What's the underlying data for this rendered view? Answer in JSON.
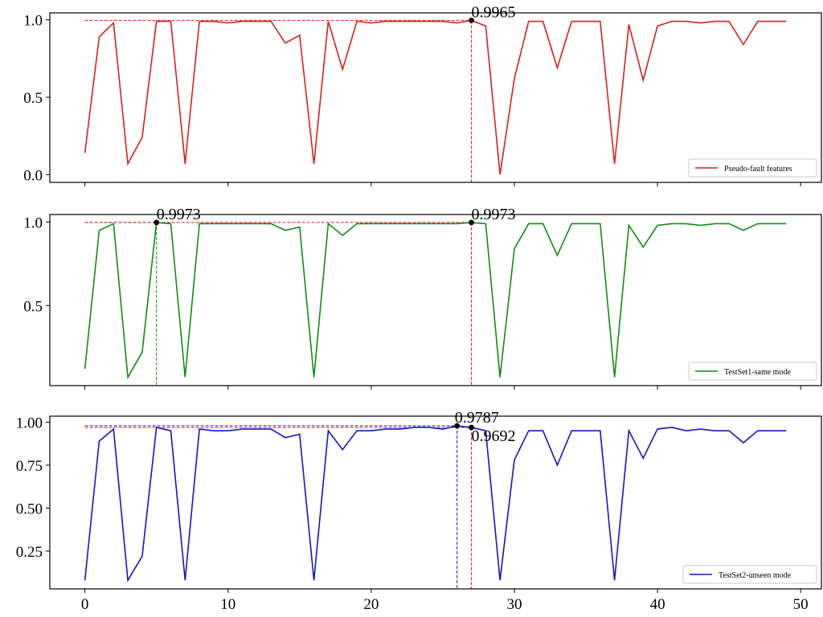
{
  "chart_data": [
    {
      "type": "line",
      "x_ticks": [
        0,
        10,
        20,
        30,
        40,
        50
      ],
      "xlim": [
        -2.45,
        51.45
      ],
      "ylim": [
        -0.05,
        1.045
      ],
      "y_ticks": [
        0.0,
        0.5,
        1.0
      ],
      "y_tick_labels": [
        "0.0",
        "0.5",
        "1.0"
      ],
      "legend": "bottom-right",
      "series": [
        {
          "name": "Pseudo-fault features",
          "color": "#d62020",
          "x": [
            0,
            1,
            2,
            3,
            4,
            5,
            6,
            7,
            8,
            9,
            10,
            11,
            12,
            13,
            14,
            15,
            16,
            17,
            18,
            19,
            20,
            21,
            22,
            23,
            24,
            25,
            26,
            27,
            28,
            29,
            30,
            31,
            32,
            33,
            34,
            35,
            36,
            37,
            38,
            39,
            40,
            41,
            42,
            43,
            44,
            45,
            46,
            47,
            48,
            49
          ],
          "y": [
            0.14,
            0.89,
            0.98,
            0.07,
            0.24,
            0.99,
            0.99,
            0.07,
            0.99,
            0.99,
            0.98,
            0.99,
            0.99,
            0.99,
            0.85,
            0.9,
            0.07,
            0.99,
            0.68,
            0.99,
            0.98,
            0.99,
            0.99,
            0.99,
            0.99,
            0.99,
            0.98,
            0.9965,
            0.96,
            0.0,
            0.62,
            0.99,
            0.99,
            0.69,
            0.99,
            0.99,
            0.99,
            0.07,
            0.97,
            0.61,
            0.96,
            0.99,
            0.99,
            0.98,
            0.99,
            0.99,
            0.84,
            0.99,
            0.99,
            0.99
          ]
        }
      ],
      "annotations": [
        {
          "label": "0.9965",
          "x": 27,
          "y": 0.9965,
          "color": "#d62020"
        }
      ]
    },
    {
      "type": "line",
      "x_ticks": [
        0,
        10,
        20,
        30,
        40,
        50
      ],
      "xlim": [
        -2.45,
        51.45
      ],
      "ylim": [
        0.02,
        1.045
      ],
      "y_ticks": [
        0.5,
        1.0
      ],
      "y_tick_labels": [
        "0.5",
        "1.0"
      ],
      "legend": "bottom-right",
      "series": [
        {
          "name": "TestSet1-same mode",
          "color": "#138a13",
          "x": [
            0,
            1,
            2,
            3,
            4,
            5,
            6,
            7,
            8,
            9,
            10,
            11,
            12,
            13,
            14,
            15,
            16,
            17,
            18,
            19,
            20,
            21,
            22,
            23,
            24,
            25,
            26,
            27,
            28,
            29,
            30,
            31,
            32,
            33,
            34,
            35,
            36,
            37,
            38,
            39,
            40,
            41,
            42,
            43,
            44,
            45,
            46,
            47,
            48,
            49
          ],
          "y": [
            0.12,
            0.95,
            0.99,
            0.07,
            0.22,
            0.9973,
            0.99,
            0.07,
            0.99,
            0.99,
            0.99,
            0.99,
            0.99,
            0.99,
            0.95,
            0.97,
            0.07,
            0.99,
            0.92,
            0.99,
            0.99,
            0.99,
            0.99,
            0.99,
            0.99,
            0.99,
            0.99,
            0.9973,
            0.99,
            0.07,
            0.84,
            0.99,
            0.99,
            0.8,
            0.99,
            0.99,
            0.99,
            0.07,
            0.98,
            0.85,
            0.98,
            0.99,
            0.99,
            0.98,
            0.99,
            0.99,
            0.95,
            0.99,
            0.99,
            0.99
          ]
        }
      ],
      "annotations": [
        {
          "label": "0.9973",
          "x": 5,
          "y": 0.9973,
          "color": "#138a13"
        },
        {
          "label": "0.9973",
          "x": 27,
          "y": 0.9973,
          "color": "#d62020"
        }
      ]
    },
    {
      "type": "line",
      "x_ticks": [
        0,
        10,
        20,
        30,
        40,
        50
      ],
      "x_tick_labels": [
        "0",
        "10",
        "20",
        "30",
        "40",
        "50"
      ],
      "xlim": [
        -2.45,
        51.45
      ],
      "ylim": [
        0.03,
        1.035
      ],
      "y_ticks": [
        0.25,
        0.5,
        0.75,
        1.0
      ],
      "y_tick_labels": [
        "0.25",
        "0.50",
        "0.75",
        "1.00"
      ],
      "legend": "bottom-right",
      "series": [
        {
          "name": "TestSet2-unseen mode",
          "color": "#1515c8",
          "x": [
            0,
            1,
            2,
            3,
            4,
            5,
            6,
            7,
            8,
            9,
            10,
            11,
            12,
            13,
            14,
            15,
            16,
            17,
            18,
            19,
            20,
            21,
            22,
            23,
            24,
            25,
            26,
            27,
            28,
            29,
            30,
            31,
            32,
            33,
            34,
            35,
            36,
            37,
            38,
            39,
            40,
            41,
            42,
            43,
            44,
            45,
            46,
            47,
            48,
            49
          ],
          "y": [
            0.08,
            0.89,
            0.96,
            0.08,
            0.22,
            0.97,
            0.95,
            0.08,
            0.96,
            0.95,
            0.95,
            0.96,
            0.96,
            0.96,
            0.91,
            0.93,
            0.08,
            0.95,
            0.84,
            0.95,
            0.95,
            0.96,
            0.96,
            0.97,
            0.97,
            0.96,
            0.9787,
            0.9692,
            0.95,
            0.08,
            0.78,
            0.95,
            0.95,
            0.75,
            0.95,
            0.95,
            0.95,
            0.08,
            0.95,
            0.79,
            0.96,
            0.97,
            0.95,
            0.96,
            0.95,
            0.95,
            0.88,
            0.95,
            0.95,
            0.95
          ]
        }
      ],
      "annotations": [
        {
          "label": "0.9787",
          "x": 26,
          "y": 0.9787,
          "color": "#1515c8"
        },
        {
          "label": "0.9692",
          "x": 27,
          "y": 0.9692,
          "color": "#d62020"
        }
      ]
    }
  ]
}
